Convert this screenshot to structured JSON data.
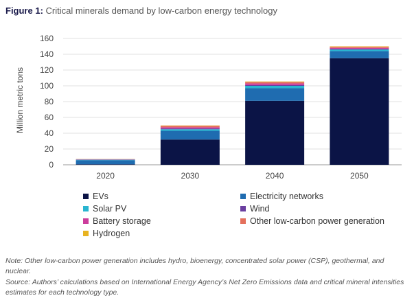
{
  "figure": {
    "label": "Figure 1:",
    "title": "Critical minerals demand by low-carbon energy technology"
  },
  "chart_data": {
    "type": "bar",
    "stacked": true,
    "title": "Figure 1: Critical minerals demand by low-carbon energy technology",
    "xlabel": "",
    "ylabel": "Million metric tons",
    "categories": [
      "2020",
      "2030",
      "2040",
      "2050"
    ],
    "ylim": [
      0,
      160
    ],
    "yticks": [
      0,
      20,
      40,
      60,
      80,
      100,
      120,
      140,
      160
    ],
    "grid": "horizontal",
    "legend_position": "bottom",
    "series": [
      {
        "name": "EVs",
        "color": "#0b1446",
        "values": [
          0.6,
          32,
          81,
          135
        ]
      },
      {
        "name": "Electricity networks",
        "color": "#1f6cb0",
        "values": [
          5.3,
          11,
          16,
          9
        ]
      },
      {
        "name": "Solar PV",
        "color": "#29b5d0",
        "values": [
          0.5,
          2,
          3,
          2
        ]
      },
      {
        "name": "Wind",
        "color": "#6b3fa0",
        "values": [
          0.3,
          1,
          1,
          1
        ]
      },
      {
        "name": "Battery storage",
        "color": "#cc3d9c",
        "values": [
          0.2,
          1.5,
          2,
          1
        ]
      },
      {
        "name": "Other low-carbon power generation",
        "color": "#e4705c",
        "values": [
          0.3,
          2,
          2,
          1.5
        ]
      },
      {
        "name": "Hydrogen",
        "color": "#e8b321",
        "values": [
          0.1,
          0.3,
          0.5,
          0.5
        ]
      }
    ]
  },
  "notes": {
    "note": "Note: Other low-carbon power generation includes hydro, bioenergy, concentrated solar power (CSP), geothermal, and nuclear.",
    "source": "Source: Authors’ calculations based on International Energy Agency’s Net Zero Emissions data and critical mineral intensities estimates for each technology type."
  }
}
